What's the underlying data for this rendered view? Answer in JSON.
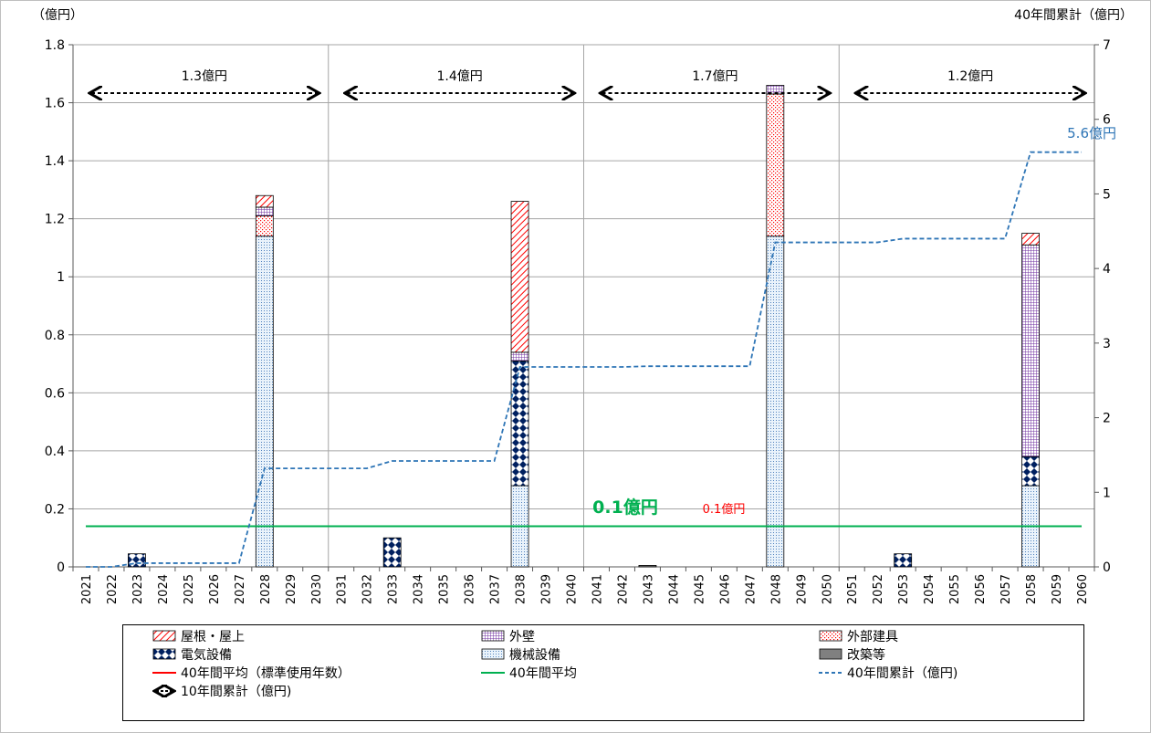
{
  "chart_data": {
    "type": "bar",
    "y_left_label": "（億円）",
    "y_right_label": "40年間累計（億円）",
    "ylim_left": [
      0,
      1.8
    ],
    "yticks_left": [
      "0",
      "0.2",
      "0.4",
      "0.6",
      "0.8",
      "1",
      "1.2",
      "1.4",
      "1.6",
      "1.8"
    ],
    "ylim_right": [
      0,
      7
    ],
    "yticks_right": [
      "0",
      "1",
      "2",
      "3",
      "4",
      "5",
      "6",
      "7"
    ],
    "years": [
      "2021",
      "2022",
      "2023",
      "2024",
      "2025",
      "2026",
      "2027",
      "2028",
      "2029",
      "2030",
      "2031",
      "2032",
      "2033",
      "2034",
      "2035",
      "2036",
      "2037",
      "2038",
      "2039",
      "2040",
      "2041",
      "2042",
      "2043",
      "2044",
      "2045",
      "2046",
      "2047",
      "2048",
      "2049",
      "2050",
      "2051",
      "2052",
      "2053",
      "2054",
      "2055",
      "2056",
      "2057",
      "2058",
      "2059",
      "2060"
    ],
    "series": [
      {
        "name": "屋根・屋上",
        "color": "#ff0000",
        "pattern": "diag",
        "points": [
          {
            "year": "2028",
            "value": 0.04
          },
          {
            "year": "2038",
            "value": 0.52
          },
          {
            "year": "2058",
            "value": 0.04
          }
        ]
      },
      {
        "name": "外壁",
        "color": "#7030a0",
        "pattern": "grid",
        "points": [
          {
            "year": "2028",
            "value": 0.03
          },
          {
            "year": "2038",
            "value": 0.03
          },
          {
            "year": "2048",
            "value": 0.03
          },
          {
            "year": "2058",
            "value": 0.73
          }
        ]
      },
      {
        "name": "外部建具",
        "color": "#ff0000",
        "pattern": "dots",
        "points": [
          {
            "year": "2028",
            "value": 0.07
          },
          {
            "year": "2048",
            "value": 0.49
          }
        ]
      },
      {
        "name": "電気設備",
        "color": "#002060",
        "pattern": "diamond",
        "points": [
          {
            "year": "2023",
            "value": 0.045
          },
          {
            "year": "2033",
            "value": 0.1
          },
          {
            "year": "2038",
            "value": 0.43
          },
          {
            "year": "2053",
            "value": 0.045
          },
          {
            "year": "2058",
            "value": 0.1
          }
        ]
      },
      {
        "name": "機械設備",
        "color": "#4f81bd",
        "pattern": "fine",
        "points": [
          {
            "year": "2028",
            "value": 1.14
          },
          {
            "year": "2038",
            "value": 0.28
          },
          {
            "year": "2048",
            "value": 1.14
          },
          {
            "year": "2058",
            "value": 0.28
          }
        ]
      },
      {
        "name": "改築等",
        "color": "#808080",
        "pattern": "solid",
        "points": [
          {
            "year": "2043",
            "value": 0.005
          }
        ]
      }
    ],
    "cumulative": {
      "name": "40年間累計（億円)",
      "color": "#2e75b6",
      "values": [
        0,
        0,
        0.05,
        0.05,
        0.05,
        0.05,
        0.05,
        1.32,
        1.32,
        1.32,
        1.32,
        1.32,
        1.42,
        1.42,
        1.42,
        1.42,
        1.42,
        2.68,
        2.68,
        2.68,
        2.68,
        2.68,
        2.69,
        2.69,
        2.69,
        2.69,
        2.69,
        4.35,
        4.35,
        4.35,
        4.35,
        4.35,
        4.4,
        4.4,
        4.4,
        4.4,
        4.4,
        5.56,
        5.56,
        5.56
      ]
    },
    "average": {
      "name": "40年間平均",
      "color": "#00b050",
      "value": 0.14
    },
    "average_std": {
      "name": "40年間平均（標準使用年数）",
      "color": "#ff0000"
    },
    "decade_ranges": {
      "name": "10年間累計（億円)",
      "items": [
        {
          "label": "1.3億円",
          "from": "2021",
          "to": "2030"
        },
        {
          "label": "1.4億円",
          "from": "2031",
          "to": "2040"
        },
        {
          "label": "1.7億円",
          "from": "2041",
          "to": "2050"
        },
        {
          "label": "1.2億円",
          "from": "2051",
          "to": "2060"
        }
      ]
    },
    "annotations": {
      "avg_green": "0.1億円",
      "avg_red": "0.1億円",
      "cumulative_end": "5.6億円"
    },
    "grid": true
  },
  "legend": {
    "items": [
      {
        "key": "roof",
        "label": "屋根・屋上",
        "color": "#ff0000",
        "pattern": "diag"
      },
      {
        "key": "wall",
        "label": "外壁",
        "color": "#7030a0",
        "pattern": "grid"
      },
      {
        "key": "fittings",
        "label": "外部建具",
        "color": "#ff0000",
        "pattern": "dots"
      },
      {
        "key": "electric",
        "label": "電気設備",
        "color": "#002060",
        "pattern": "diamond"
      },
      {
        "key": "mechanical",
        "label": "機械設備",
        "color": "#4f81bd",
        "pattern": "fine"
      },
      {
        "key": "rebuild",
        "label": "改築等",
        "color": "#808080",
        "pattern": "solid"
      },
      {
        "key": "avg_std",
        "label": "40年間平均（標準使用年数）",
        "color": "#ff0000",
        "pattern": "line"
      },
      {
        "key": "avg",
        "label": "40年間平均",
        "color": "#00b050",
        "pattern": "line"
      },
      {
        "key": "cum",
        "label": "40年間累計（億円)",
        "color": "#2e75b6",
        "pattern": "dash"
      },
      {
        "key": "decade",
        "label": "10年間累計（億円)",
        "color": "#000000",
        "pattern": "arrow"
      }
    ]
  }
}
